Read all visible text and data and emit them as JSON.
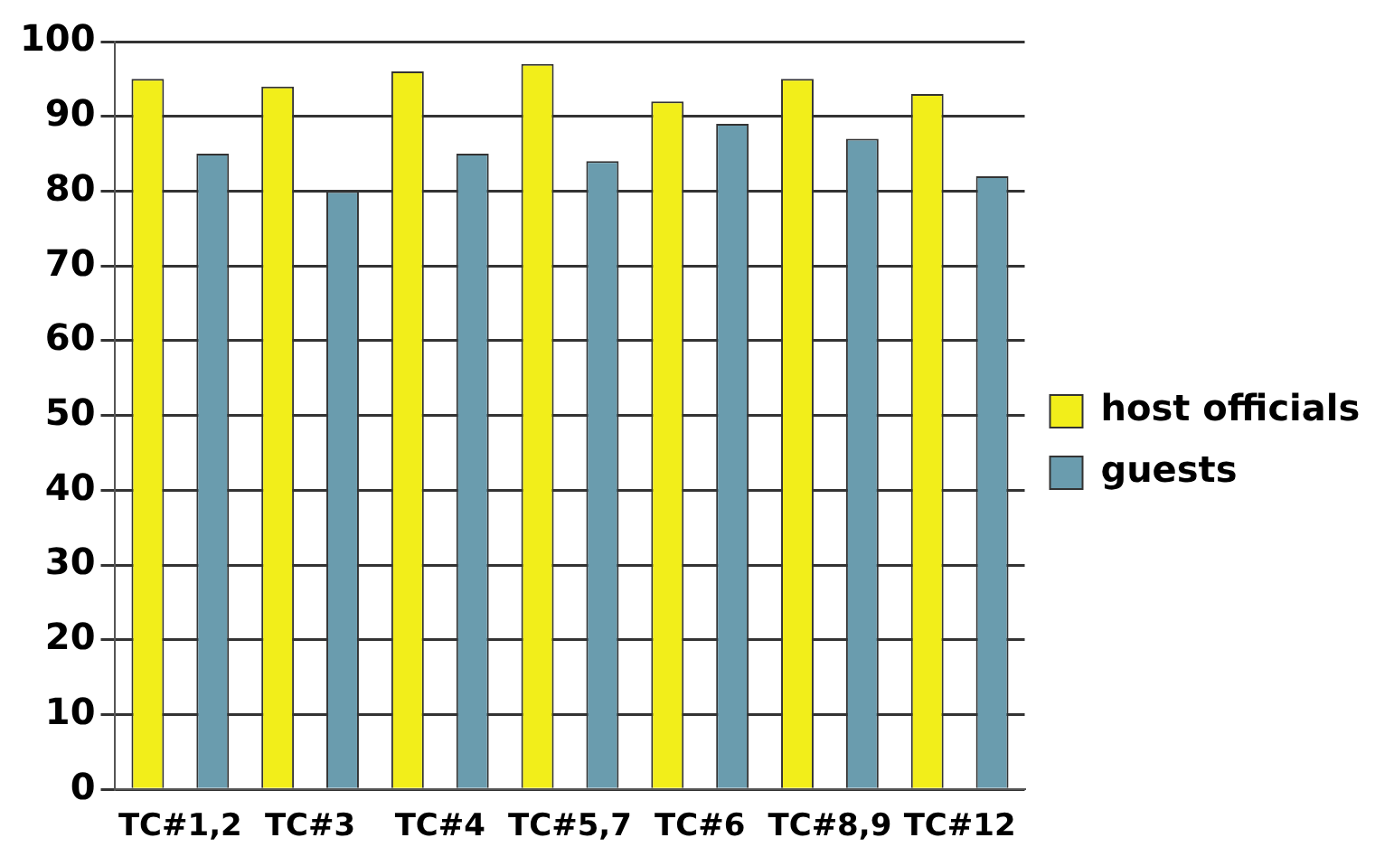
{
  "chart_data": {
    "type": "bar",
    "categories": [
      "TC#1,2",
      "TC#3",
      "TC#4",
      "TC#5,7",
      "TC#6",
      "TC#8,9",
      "TC#12"
    ],
    "series": [
      {
        "name": "host officials",
        "color": "#f2ee1a",
        "values": [
          95,
          94,
          96,
          97,
          92,
          95,
          93
        ]
      },
      {
        "name": "guests",
        "color": "#6a9cae",
        "values": [
          85,
          80,
          85,
          84,
          89,
          87,
          82
        ]
      }
    ],
    "ylim": [
      0,
      100
    ],
    "yticks": [
      0,
      10,
      20,
      30,
      40,
      50,
      60,
      70,
      80,
      90,
      100
    ],
    "grid": "y",
    "legend": "right"
  }
}
